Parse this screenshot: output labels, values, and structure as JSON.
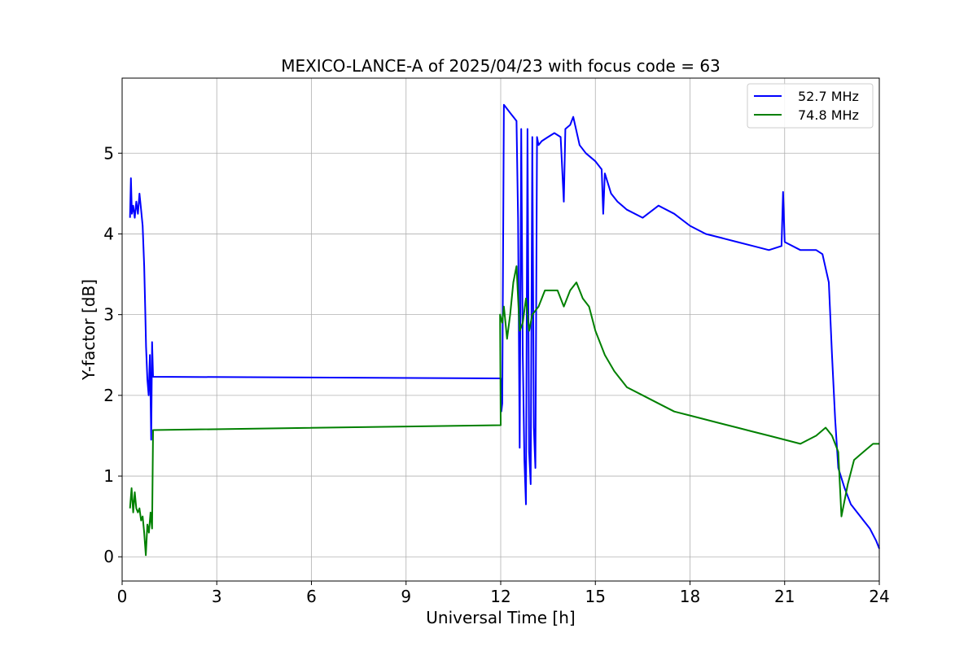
{
  "chart_data": {
    "type": "line",
    "title": "MEXICO-LANCE-A of 2025/04/23 with focus code = 63",
    "xlabel": "Universal Time [h]",
    "ylabel": "Y-factor [dB]",
    "xlim": [
      0,
      24
    ],
    "ylim": [
      -0.3,
      5.93
    ],
    "xticks": [
      0,
      3,
      6,
      9,
      12,
      15,
      18,
      21,
      24
    ],
    "yticks": [
      0,
      1,
      2,
      3,
      4,
      5
    ],
    "grid": true,
    "legend_position": "top-right",
    "series": [
      {
        "name": "52.7 MHz",
        "color": "#0000ff",
        "points": [
          [
            0.25,
            4.2
          ],
          [
            0.28,
            4.69
          ],
          [
            0.31,
            4.25
          ],
          [
            0.35,
            4.35
          ],
          [
            0.4,
            4.2
          ],
          [
            0.45,
            4.4
          ],
          [
            0.5,
            4.25
          ],
          [
            0.55,
            4.5
          ],
          [
            0.6,
            4.3
          ],
          [
            0.65,
            4.1
          ],
          [
            0.7,
            3.6
          ],
          [
            0.73,
            3.1
          ],
          [
            0.76,
            2.6
          ],
          [
            0.8,
            2.2
          ],
          [
            0.84,
            2.0
          ],
          [
            0.88,
            2.5
          ],
          [
            0.9,
            2.0
          ],
          [
            0.92,
            1.45
          ],
          [
            0.95,
            2.66
          ],
          [
            0.98,
            2.23
          ],
          [
            12.0,
            2.21
          ],
          [
            12.02,
            1.8
          ],
          [
            12.05,
            1.9
          ],
          [
            12.1,
            5.6
          ],
          [
            12.2,
            5.55
          ],
          [
            12.3,
            5.5
          ],
          [
            12.4,
            5.45
          ],
          [
            12.5,
            5.4
          ],
          [
            12.55,
            4.2
          ],
          [
            12.6,
            1.35
          ],
          [
            12.65,
            5.3
          ],
          [
            12.7,
            2.5
          ],
          [
            12.75,
            1.2
          ],
          [
            12.8,
            0.65
          ],
          [
            12.85,
            5.3
          ],
          [
            12.9,
            1.3
          ],
          [
            12.95,
            0.9
          ],
          [
            13.0,
            5.2
          ],
          [
            13.05,
            1.6
          ],
          [
            13.1,
            1.1
          ],
          [
            13.15,
            5.2
          ],
          [
            13.2,
            5.1
          ],
          [
            13.3,
            5.15
          ],
          [
            13.5,
            5.2
          ],
          [
            13.7,
            5.25
          ],
          [
            13.9,
            5.2
          ],
          [
            14.0,
            4.4
          ],
          [
            14.05,
            5.3
          ],
          [
            14.2,
            5.35
          ],
          [
            14.3,
            5.45
          ],
          [
            14.5,
            5.1
          ],
          [
            14.7,
            5.0
          ],
          [
            15.0,
            4.9
          ],
          [
            15.2,
            4.8
          ],
          [
            15.25,
            4.25
          ],
          [
            15.3,
            4.75
          ],
          [
            15.5,
            4.5
          ],
          [
            15.7,
            4.4
          ],
          [
            16.0,
            4.3
          ],
          [
            16.5,
            4.2
          ],
          [
            17.0,
            4.35
          ],
          [
            17.5,
            4.25
          ],
          [
            18.0,
            4.1
          ],
          [
            18.5,
            4.0
          ],
          [
            19.0,
            3.95
          ],
          [
            19.5,
            3.9
          ],
          [
            20.0,
            3.85
          ],
          [
            20.5,
            3.8
          ],
          [
            20.9,
            3.85
          ],
          [
            20.95,
            4.52
          ],
          [
            21.0,
            3.9
          ],
          [
            21.5,
            3.8
          ],
          [
            22.0,
            3.8
          ],
          [
            22.2,
            3.75
          ],
          [
            22.4,
            3.4
          ],
          [
            22.5,
            2.5
          ],
          [
            22.6,
            1.7
          ],
          [
            22.7,
            1.1
          ],
          [
            22.9,
            0.85
          ],
          [
            23.1,
            0.65
          ],
          [
            23.3,
            0.55
          ],
          [
            23.5,
            0.45
          ],
          [
            23.7,
            0.35
          ],
          [
            23.9,
            0.2
          ],
          [
            24.0,
            0.1
          ]
        ]
      },
      {
        "name": "74.8 MHz",
        "color": "#008000",
        "points": [
          [
            0.25,
            0.6
          ],
          [
            0.3,
            0.85
          ],
          [
            0.35,
            0.55
          ],
          [
            0.4,
            0.8
          ],
          [
            0.45,
            0.6
          ],
          [
            0.5,
            0.55
          ],
          [
            0.55,
            0.6
          ],
          [
            0.6,
            0.45
          ],
          [
            0.65,
            0.5
          ],
          [
            0.7,
            0.3
          ],
          [
            0.75,
            0.02
          ],
          [
            0.8,
            0.4
          ],
          [
            0.85,
            0.3
          ],
          [
            0.9,
            0.55
          ],
          [
            0.95,
            0.35
          ],
          [
            0.98,
            1.57
          ],
          [
            12.0,
            1.63
          ],
          [
            11.98,
            3.0
          ],
          [
            12.05,
            2.9
          ],
          [
            12.1,
            3.1
          ],
          [
            12.2,
            2.7
          ],
          [
            12.3,
            3.0
          ],
          [
            12.4,
            3.4
          ],
          [
            12.5,
            3.6
          ],
          [
            12.6,
            2.8
          ],
          [
            12.7,
            2.9
          ],
          [
            12.8,
            3.2
          ],
          [
            12.9,
            2.8
          ],
          [
            13.0,
            3.0
          ],
          [
            13.2,
            3.1
          ],
          [
            13.4,
            3.3
          ],
          [
            13.6,
            3.3
          ],
          [
            13.8,
            3.3
          ],
          [
            14.0,
            3.1
          ],
          [
            14.2,
            3.3
          ],
          [
            14.4,
            3.4
          ],
          [
            14.6,
            3.2
          ],
          [
            14.8,
            3.1
          ],
          [
            15.0,
            2.8
          ],
          [
            15.3,
            2.5
          ],
          [
            15.6,
            2.3
          ],
          [
            16.0,
            2.1
          ],
          [
            16.5,
            2.0
          ],
          [
            17.0,
            1.9
          ],
          [
            17.5,
            1.8
          ],
          [
            18.0,
            1.75
          ],
          [
            18.5,
            1.7
          ],
          [
            19.0,
            1.65
          ],
          [
            19.5,
            1.6
          ],
          [
            20.0,
            1.55
          ],
          [
            20.5,
            1.5
          ],
          [
            21.0,
            1.45
          ],
          [
            21.5,
            1.4
          ],
          [
            22.0,
            1.5
          ],
          [
            22.3,
            1.6
          ],
          [
            22.5,
            1.5
          ],
          [
            22.7,
            1.3
          ],
          [
            22.8,
            0.5
          ],
          [
            23.0,
            0.9
          ],
          [
            23.2,
            1.2
          ],
          [
            23.5,
            1.3
          ],
          [
            23.8,
            1.4
          ],
          [
            24.0,
            1.4
          ]
        ]
      }
    ]
  }
}
